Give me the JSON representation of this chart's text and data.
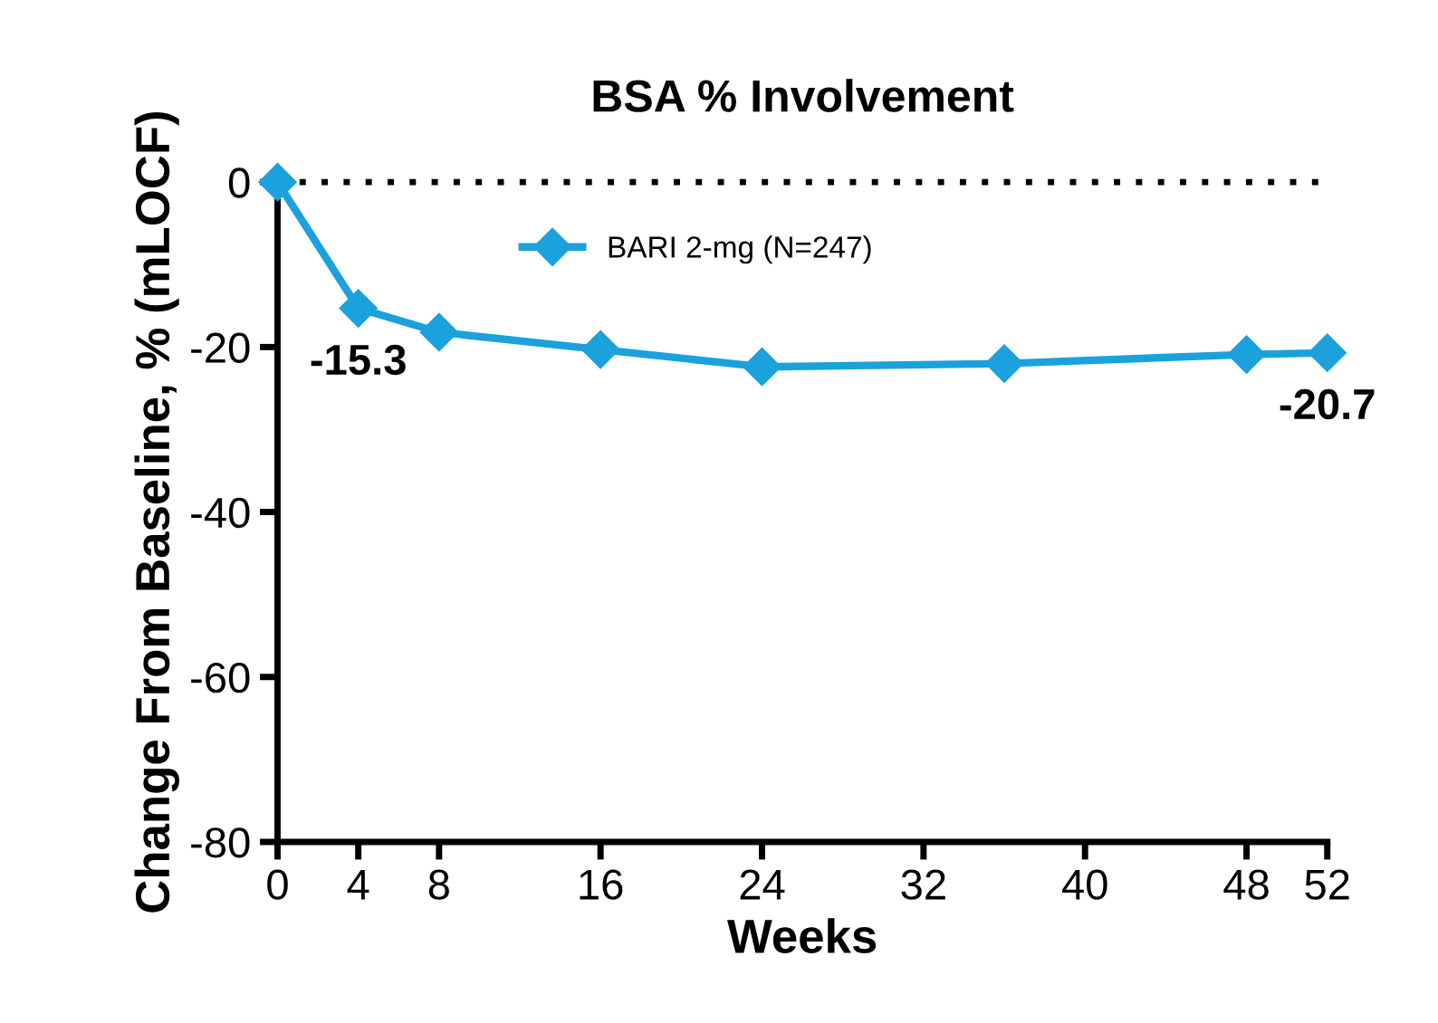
{
  "chart_data": {
    "type": "line",
    "title": "BSA % Involvement",
    "xlabel": "Weeks",
    "ylabel": "Change From Baseline, % (mLOCF)",
    "x": [
      0,
      4,
      8,
      16,
      24,
      36,
      48,
      52
    ],
    "series": [
      {
        "name": "BARI 2-mg (N=247)",
        "color": "#1ba1dc",
        "values": [
          0,
          -15.3,
          -18.2,
          -20.3,
          -22.4,
          -22.0,
          -20.9,
          -20.7
        ],
        "value_labels": [
          null,
          "-15.3",
          null,
          null,
          null,
          null,
          null,
          "-20.7"
        ]
      }
    ],
    "xlim": [
      0,
      52
    ],
    "xticks": [
      0,
      4,
      8,
      16,
      24,
      32,
      40,
      48,
      52
    ],
    "ylim": [
      -80,
      0
    ],
    "yticks": [
      0,
      -20,
      -40,
      -60,
      -80
    ],
    "ref_lines": [
      {
        "axis": "y",
        "value": 0,
        "color": "#000000",
        "line_style": "dotted"
      }
    ],
    "marker": "diamond",
    "line_style": "solid",
    "legend": "top",
    "grid": false
  }
}
